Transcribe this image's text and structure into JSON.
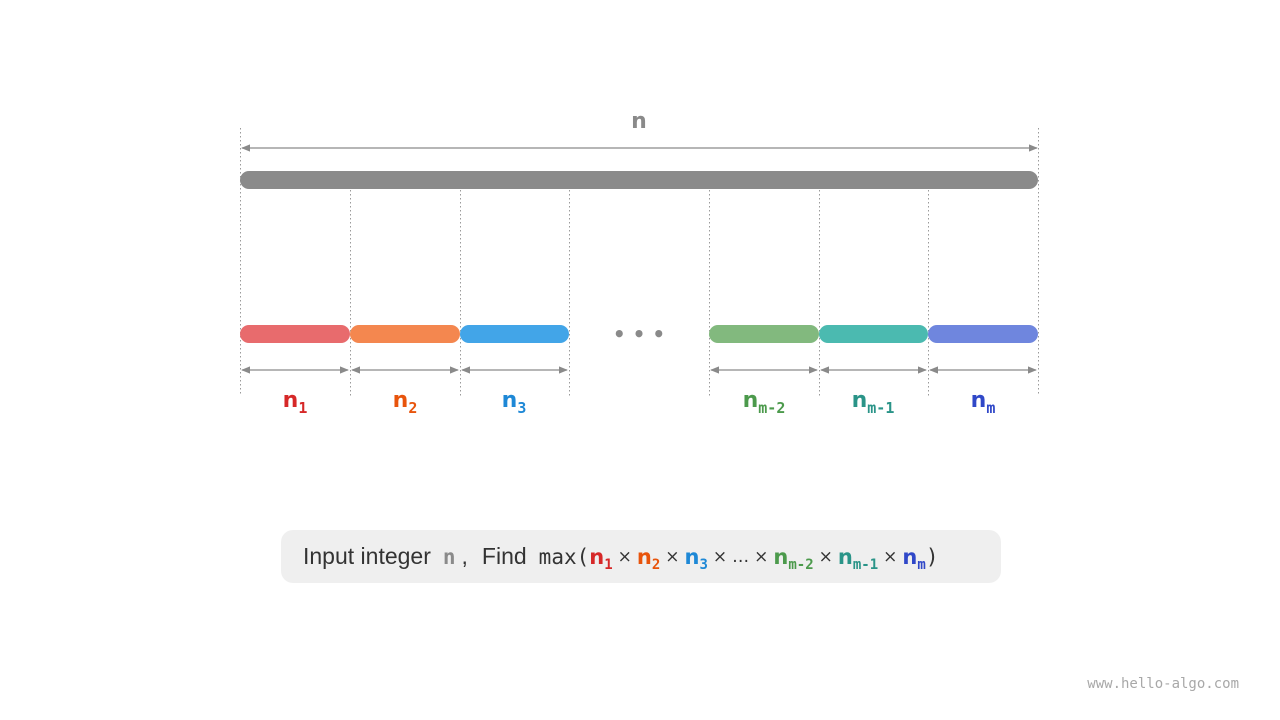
{
  "diagram": {
    "total_label": "n",
    "total_color": "#8a8a8a",
    "ellipsis": "• • •",
    "parts": [
      {
        "name": "n",
        "sub": "1",
        "bar_color": "#e86b6d",
        "label_color": "#d62828"
      },
      {
        "name": "n",
        "sub": "2",
        "bar_color": "#f4874f",
        "label_color": "#e8540c"
      },
      {
        "name": "n",
        "sub": "3",
        "bar_color": "#42a5e8",
        "label_color": "#1e88d6"
      },
      {
        "name": "n",
        "sub": "m-2",
        "bar_color": "#82b97e",
        "label_color": "#4c9a4c"
      },
      {
        "name": "n",
        "sub": "m-1",
        "bar_color": "#4bbab0",
        "label_color": "#2a9488"
      },
      {
        "name": "n",
        "sub": "m",
        "bar_color": "#6f86de",
        "label_color": "#3048c8"
      }
    ]
  },
  "formula": {
    "prefix": "Input integer",
    "input_var": "n",
    "separator": ",",
    "find": "Find",
    "func": "max(",
    "close": ")",
    "times": "×",
    "ellipsis": "…",
    "terms": [
      {
        "name": "n",
        "sub": "1"
      },
      {
        "name": "n",
        "sub": "2"
      },
      {
        "name": "n",
        "sub": "3"
      },
      {
        "name": "n",
        "sub": "m-2"
      },
      {
        "name": "n",
        "sub": "m-1"
      },
      {
        "name": "n",
        "sub": "m"
      }
    ]
  },
  "watermark": "www.hello-algo.com"
}
